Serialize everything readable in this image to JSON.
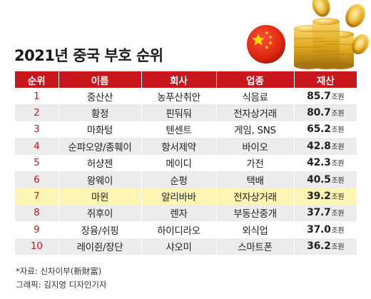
{
  "title": "2021년 중국 부호 순위",
  "table": {
    "headers": [
      "순위",
      "이름",
      "회사",
      "업종",
      "재산"
    ],
    "unit": "조원",
    "highlight_rank": 7,
    "rows": [
      {
        "rank": "1",
        "name": "중산산",
        "company": "농푸산취안",
        "industry": "식음료",
        "wealth": "85.7"
      },
      {
        "rank": "2",
        "name": "황정",
        "company": "핀둬둬",
        "industry": "전자상거래",
        "wealth": "80.7"
      },
      {
        "rank": "3",
        "name": "마화텅",
        "company": "텐센트",
        "industry": "게임, SNS",
        "wealth": "65.2"
      },
      {
        "rank": "4",
        "name": "순퍄오양/종훼이",
        "company": "항서제약",
        "industry": "바이오",
        "wealth": "42.8"
      },
      {
        "rank": "5",
        "name": "허샹젠",
        "company": "메이디",
        "industry": "가전",
        "wealth": "42.3"
      },
      {
        "rank": "6",
        "name": "왕웨이",
        "company": "순펑",
        "industry": "택배",
        "wealth": "40.5"
      },
      {
        "rank": "7",
        "name": "마윈",
        "company": "알리바바",
        "industry": "전자상거래",
        "wealth": "39.2"
      },
      {
        "rank": "8",
        "name": "쥐후이",
        "company": "렌자",
        "industry": "부동산중개",
        "wealth": "37.7"
      },
      {
        "rank": "9",
        "name": "장융/쉬핑",
        "company": "하이디라오",
        "industry": "외식업",
        "wealth": "37.0"
      },
      {
        "rank": "10",
        "name": "레이쥔/장단",
        "company": "샤오미",
        "industry": "스마트폰",
        "wealth": "36.2"
      }
    ]
  },
  "footer": {
    "source": "*자료: 신차이부(新財富)",
    "credit": "그래픽: 김지영 디자인기자"
  },
  "chart_data": {
    "type": "table",
    "title": "2021년 중국 부호 순위",
    "columns": [
      "순위",
      "이름",
      "회사",
      "업종",
      "재산"
    ],
    "unit": "조원",
    "rows": [
      [
        "1",
        "중산산",
        "농푸산취안",
        "식음료",
        85.7
      ],
      [
        "2",
        "황정",
        "핀둬둬",
        "전자상거래",
        80.7
      ],
      [
        "3",
        "마화텅",
        "텐센트",
        "게임, SNS",
        65.2
      ],
      [
        "4",
        "순퍄오양/종훼이",
        "항서제약",
        "바이오",
        42.8
      ],
      [
        "5",
        "허샹젠",
        "메이디",
        "가전",
        42.3
      ],
      [
        "6",
        "왕웨이",
        "순펑",
        "택배",
        40.5
      ],
      [
        "7",
        "마윈",
        "알리바바",
        "전자상거래",
        39.2
      ],
      [
        "8",
        "쥐후이",
        "렌자",
        "부동산중개",
        37.7
      ],
      [
        "9",
        "장융/쉬핑",
        "하이디라오",
        "외식업",
        37.0
      ],
      [
        "10",
        "레이쥔/장단",
        "샤오미",
        "스마트폰",
        36.2
      ]
    ],
    "highlighted_row": 7
  },
  "colors": {
    "header_bg": "#c8161d",
    "rank_text": "#c8161d",
    "row_alt": "#ececec",
    "highlight": "#fdf5b4",
    "coin_gold": "#e0a91c",
    "flag_red": "#de2910",
    "flag_star": "#ffde00"
  },
  "icons": {
    "flag": "china-flag-icon",
    "coins": "gold-coins-icon"
  }
}
